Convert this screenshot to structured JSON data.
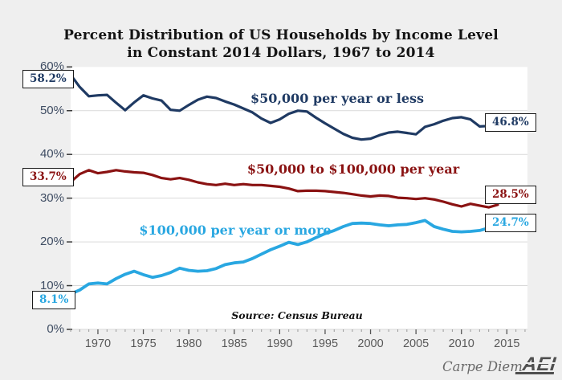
{
  "title": {
    "line1": "Percent Distribution of US Households by Income Level",
    "line2": "in Constant 2014 Dollars, 1967 to 2014"
  },
  "source_note": "Source: Census Bureau",
  "footer": {
    "carpe_diem": "Carpe Diem",
    "aei_logo": "AEI"
  },
  "axes": {
    "y_ticks": [
      "0%",
      "10%",
      "20%",
      "30%",
      "40%",
      "50%",
      "60%"
    ],
    "x_ticks": [
      "1970",
      "1975",
      "1980",
      "1985",
      "1990",
      "1995",
      "2000",
      "2005",
      "2010",
      "2015"
    ]
  },
  "colors": {
    "background": "#efefef",
    "plot_background": "#ffffff",
    "gridline": "#d9d9d9",
    "navy": "#1f3a63",
    "dark_red": "#8a1212",
    "light_blue": "#29a7e1",
    "y_label": "#3f4d63",
    "x_label": "#595959"
  },
  "chart_data": {
    "type": "line",
    "title": "Percent Distribution of US Households by Income Level in Constant 2014 Dollars, 1967 to 2014",
    "xlabel": "",
    "ylabel": "",
    "x_start": 1967,
    "x_end": 2014,
    "x_axis_tick_years": [
      1970,
      1975,
      1980,
      1985,
      1990,
      1995,
      2000,
      2005,
      2010,
      2015
    ],
    "ylim": [
      0,
      60
    ],
    "grid": true,
    "legend_position": "labels-inside-plot",
    "series": [
      {
        "name": "$50,000 per year or less",
        "color": "#1f3a63",
        "start_label": "58.2%",
        "end_label": "46.8%",
        "values": [
          58.2,
          55.4,
          53.3,
          53.5,
          53.6,
          51.8,
          50.1,
          51.9,
          53.5,
          52.8,
          52.3,
          50.2,
          50.0,
          51.3,
          52.5,
          53.2,
          52.9,
          52.1,
          51.4,
          50.5,
          49.6,
          48.2,
          47.2,
          48.0,
          49.3,
          50.0,
          49.8,
          48.4,
          47.1,
          45.9,
          44.7,
          43.8,
          43.4,
          43.6,
          44.4,
          45.0,
          45.2,
          44.9,
          44.6,
          46.3,
          46.9,
          47.7,
          48.3,
          48.5,
          48.0,
          46.4,
          46.5,
          46.8
        ]
      },
      {
        "name": "$50,000 to $100,000 per year",
        "color": "#8a1212",
        "start_label": "33.7%",
        "end_label": "28.5%",
        "values": [
          33.7,
          35.5,
          36.4,
          35.7,
          36.0,
          36.4,
          36.1,
          35.9,
          35.8,
          35.3,
          34.6,
          34.3,
          34.6,
          34.2,
          33.6,
          33.2,
          33.0,
          33.3,
          33.0,
          33.2,
          33.0,
          33.0,
          32.8,
          32.6,
          32.2,
          31.6,
          31.7,
          31.7,
          31.6,
          31.4,
          31.2,
          30.9,
          30.6,
          30.4,
          30.6,
          30.5,
          30.1,
          30.0,
          29.8,
          30.0,
          29.7,
          29.2,
          28.6,
          28.1,
          28.7,
          28.3,
          27.9,
          28.5
        ]
      },
      {
        "name": "$100,000 per year or more",
        "color": "#29a7e1",
        "start_label": "8.1%",
        "end_label": "24.7%",
        "values": [
          8.1,
          9.0,
          10.4,
          10.6,
          10.4,
          11.6,
          12.6,
          13.3,
          12.5,
          11.9,
          12.3,
          13.0,
          14.0,
          13.5,
          13.3,
          13.4,
          13.9,
          14.8,
          15.2,
          15.4,
          16.2,
          17.2,
          18.2,
          19.0,
          19.9,
          19.4,
          20.0,
          21.0,
          21.9,
          22.6,
          23.5,
          24.2,
          24.3,
          24.2,
          23.9,
          23.7,
          23.9,
          24.0,
          24.4,
          24.9,
          23.5,
          22.9,
          22.4,
          22.3,
          22.4,
          22.6,
          23.2,
          24.7
        ]
      }
    ]
  }
}
